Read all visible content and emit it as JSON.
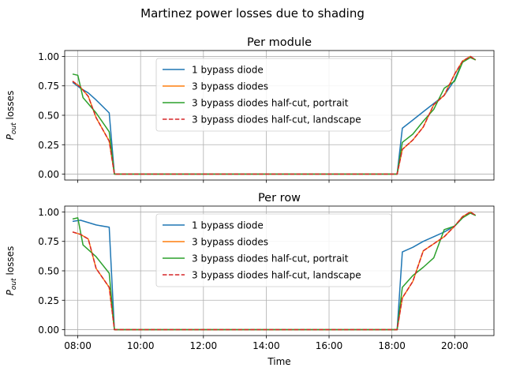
{
  "suptitle": "Martinez power losses due to shading",
  "chart_data": [
    {
      "type": "line",
      "title": "Per module",
      "xlabel": "",
      "ylabel": "P_out losses",
      "ylabel_main": "P",
      "ylabel_sub": "out",
      "ylabel_rest": " losses",
      "xlim": [
        "07:35",
        "21:15"
      ],
      "ylim": [
        -0.05,
        1.05
      ],
      "x_ticks": [
        "08:00",
        "10:00",
        "12:00",
        "14:00",
        "16:00",
        "18:00",
        "20:00"
      ],
      "x_tick_labels": [
        "",
        "",
        "",
        "",
        "",
        "",
        ""
      ],
      "y_ticks": [
        "0.00",
        "0.25",
        "0.50",
        "0.75",
        "1.00"
      ],
      "grid": true,
      "legend_position": "top-center",
      "series": [
        {
          "name": "1 bypass diode",
          "color": "#1f77b4",
          "dash": "solid",
          "x": [
            "07:50",
            "08:05",
            "08:20",
            "08:35",
            "09:00",
            "09:10",
            "18:10",
            "18:20",
            "18:40",
            "19:00",
            "19:20",
            "19:40",
            "20:00",
            "20:15",
            "20:30",
            "20:40"
          ],
          "y": [
            0.78,
            0.73,
            0.69,
            0.63,
            0.52,
            0.0,
            0.0,
            0.39,
            0.46,
            0.53,
            0.6,
            0.67,
            0.8,
            0.96,
            1.0,
            0.97
          ]
        },
        {
          "name": "3 bypass diodes",
          "color": "#ff7f0e",
          "dash": "solid",
          "x": [
            "07:50",
            "08:05",
            "08:20",
            "08:35",
            "09:00",
            "09:10",
            "18:10",
            "18:20",
            "18:40",
            "19:00",
            "19:20",
            "19:40",
            "20:00",
            "20:15",
            "20:30",
            "20:40"
          ],
          "y": [
            0.79,
            0.74,
            0.66,
            0.48,
            0.28,
            0.0,
            0.0,
            0.21,
            0.29,
            0.4,
            0.59,
            0.67,
            0.85,
            0.96,
            1.0,
            0.97
          ]
        },
        {
          "name": "3 bypass diodes half-cut, portrait",
          "color": "#2ca02c",
          "dash": "solid",
          "x": [
            "07:50",
            "08:00",
            "08:10",
            "08:35",
            "09:00",
            "09:10",
            "18:10",
            "18:20",
            "18:40",
            "19:00",
            "19:20",
            "19:40",
            "20:00",
            "20:15",
            "20:30",
            "20:40"
          ],
          "y": [
            0.85,
            0.84,
            0.65,
            0.52,
            0.36,
            0.0,
            0.0,
            0.27,
            0.34,
            0.45,
            0.55,
            0.73,
            0.79,
            0.95,
            0.99,
            0.97
          ]
        },
        {
          "name": "3 bypass diodes half-cut, landscape",
          "color": "#d62728",
          "dash": "dashed",
          "x": [
            "07:50",
            "08:05",
            "08:20",
            "08:35",
            "09:00",
            "09:10",
            "18:10",
            "18:20",
            "18:40",
            "19:00",
            "19:20",
            "19:40",
            "20:00",
            "20:15",
            "20:30",
            "20:40"
          ],
          "y": [
            0.79,
            0.74,
            0.66,
            0.48,
            0.28,
            0.0,
            0.0,
            0.21,
            0.29,
            0.4,
            0.59,
            0.67,
            0.85,
            0.96,
            1.0,
            0.97
          ]
        }
      ]
    },
    {
      "type": "line",
      "title": "Per row",
      "xlabel": "Time",
      "ylabel": "P_out losses",
      "ylabel_main": "P",
      "ylabel_sub": "out",
      "ylabel_rest": " losses",
      "xlim": [
        "07:35",
        "21:15"
      ],
      "ylim": [
        -0.05,
        1.05
      ],
      "x_ticks": [
        "08:00",
        "10:00",
        "12:00",
        "14:00",
        "16:00",
        "18:00",
        "20:00"
      ],
      "x_tick_labels": [
        "08:00",
        "10:00",
        "12:00",
        "14:00",
        "16:00",
        "18:00",
        "20:00"
      ],
      "y_ticks": [
        "0.00",
        "0.25",
        "0.50",
        "0.75",
        "1.00"
      ],
      "grid": true,
      "legend_position": "top-center",
      "series": [
        {
          "name": "1 bypass diode",
          "color": "#1f77b4",
          "dash": "solid",
          "x": [
            "07:50",
            "08:05",
            "08:20",
            "08:35",
            "09:00",
            "09:10",
            "18:10",
            "18:20",
            "18:40",
            "19:00",
            "19:20",
            "19:40",
            "20:00",
            "20:15",
            "20:30",
            "20:40"
          ],
          "y": [
            0.92,
            0.93,
            0.91,
            0.89,
            0.87,
            0.0,
            0.0,
            0.66,
            0.7,
            0.75,
            0.79,
            0.83,
            0.88,
            0.95,
            1.0,
            0.97
          ]
        },
        {
          "name": "3 bypass diodes",
          "color": "#ff7f0e",
          "dash": "solid",
          "x": [
            "07:50",
            "08:05",
            "08:20",
            "08:35",
            "09:00",
            "09:10",
            "18:10",
            "18:20",
            "18:40",
            "19:00",
            "19:20",
            "19:40",
            "20:00",
            "20:15",
            "20:30",
            "20:40"
          ],
          "y": [
            0.83,
            0.81,
            0.77,
            0.52,
            0.36,
            0.0,
            0.0,
            0.27,
            0.41,
            0.67,
            0.73,
            0.79,
            0.88,
            0.96,
            1.0,
            0.97
          ]
        },
        {
          "name": "3 bypass diodes half-cut, portrait",
          "color": "#2ca02c",
          "dash": "solid",
          "x": [
            "07:50",
            "08:00",
            "08:10",
            "08:35",
            "09:00",
            "09:10",
            "18:10",
            "18:20",
            "18:40",
            "19:00",
            "19:20",
            "19:40",
            "20:00",
            "20:15",
            "20:30",
            "20:40"
          ],
          "y": [
            0.94,
            0.95,
            0.72,
            0.62,
            0.48,
            0.0,
            0.0,
            0.36,
            0.46,
            0.53,
            0.61,
            0.85,
            0.88,
            0.95,
            0.99,
            0.97
          ]
        },
        {
          "name": "3 bypass diodes half-cut, landscape",
          "color": "#d62728",
          "dash": "dashed",
          "x": [
            "07:50",
            "08:05",
            "08:20",
            "08:35",
            "09:00",
            "09:10",
            "18:10",
            "18:20",
            "18:40",
            "19:00",
            "19:20",
            "19:40",
            "20:00",
            "20:15",
            "20:30",
            "20:40"
          ],
          "y": [
            0.83,
            0.81,
            0.77,
            0.52,
            0.36,
            0.0,
            0.0,
            0.27,
            0.41,
            0.67,
            0.73,
            0.79,
            0.88,
            0.96,
            1.0,
            0.97
          ]
        }
      ]
    }
  ]
}
